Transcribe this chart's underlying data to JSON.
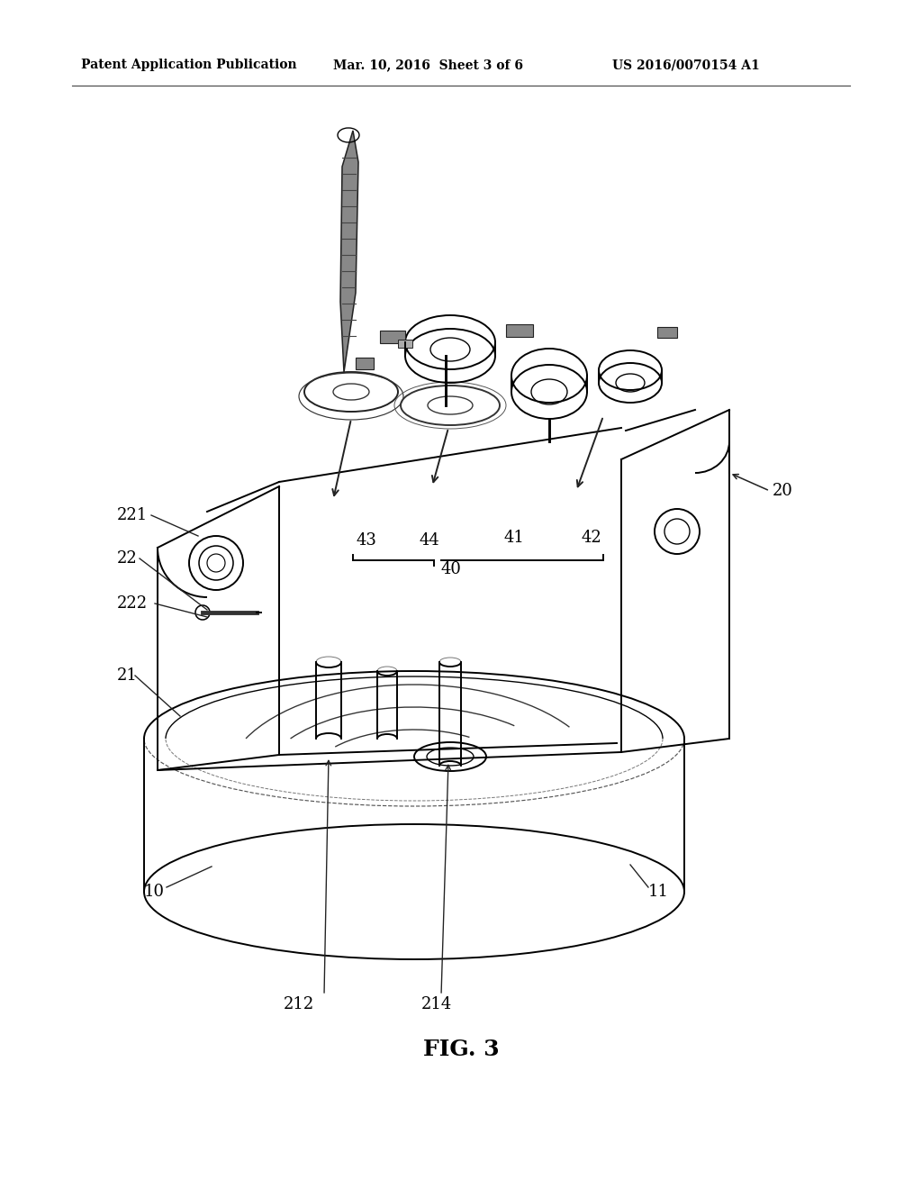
{
  "background_color": "#ffffff",
  "header_left": "Patent Application Publication",
  "header_mid": "Mar. 10, 2016  Sheet 3 of 6",
  "header_right": "US 2016/0070154 A1",
  "figure_label": "FIG. 3",
  "line_color": "#1a1a1a",
  "line_width": 1.4,
  "text_color": "#000000",
  "fig_w": 10.24,
  "fig_h": 13.2,
  "dpi": 100
}
